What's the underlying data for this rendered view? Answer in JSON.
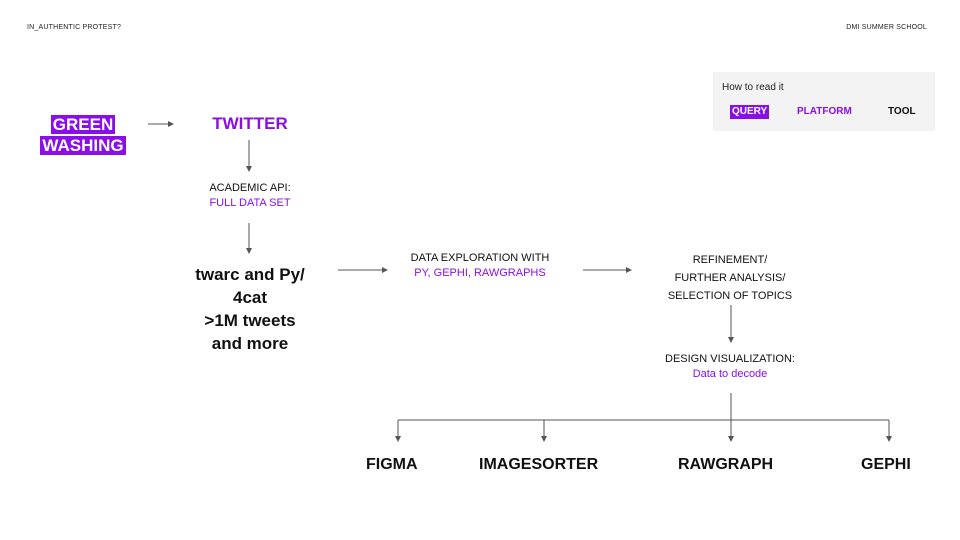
{
  "header": {
    "left": "IN_AUTHENTIC PROTEST?",
    "right": "DMI SUMMER SCHOOL"
  },
  "legend": {
    "title": "How to read it",
    "query": "QUERY",
    "platform": "PLATFORM",
    "tool": "TOOL"
  },
  "flow": {
    "query_lines": [
      "GREEN",
      "WASHING"
    ],
    "platform": "TWITTER",
    "api": {
      "line1": "ACADEMIC API:",
      "line2": "FULL DATA SET"
    },
    "tools_main": [
      "twarc and Py/",
      "4cat",
      ">1M tweets",
      "and more"
    ],
    "exploration": {
      "line1": "DATA EXPLORATION WITH",
      "line2": "PY, GEPHI, RAWGRAPHS"
    },
    "refinement": [
      "REFINEMENT/",
      "FURTHER ANALYSIS/",
      "SELECTION OF TOPICS"
    ],
    "design": {
      "line1": "DESIGN VISUALIZATION:",
      "line2": "Data to decode"
    },
    "output_tools": [
      "FIGMA",
      "IMAGESORTER",
      "RAWGRAPH",
      "GEPHI"
    ]
  },
  "colors": {
    "accent": "#8a0ee6",
    "text": "#111111",
    "legend_bg": "#f3f3f3",
    "arrow": "#555555"
  }
}
